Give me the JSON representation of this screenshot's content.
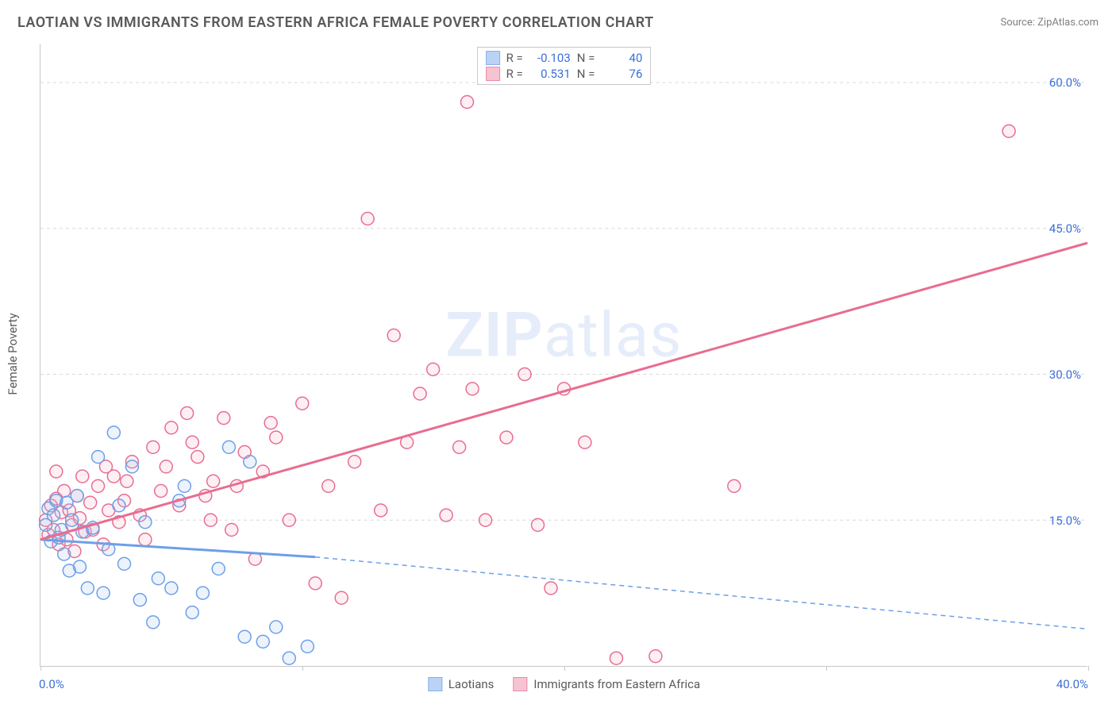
{
  "title": "LAOTIAN VS IMMIGRANTS FROM EASTERN AFRICA FEMALE POVERTY CORRELATION CHART",
  "source": "Source: ZipAtlas.com",
  "watermark_text_bold": "ZIP",
  "watermark_text_rest": "atlas",
  "y_axis_title": "Female Poverty",
  "chart": {
    "type": "scatter_with_regression",
    "background_color": "#ffffff",
    "grid_color": "#d8d8d8",
    "axis_color": "#c8c8c8",
    "tick_label_color": "#3b6fd8",
    "tick_fontsize": 15,
    "title_color": "#5a5a5a",
    "title_fontsize": 18,
    "xlim": [
      0.0,
      40.0
    ],
    "ylim": [
      0.0,
      64.0
    ],
    "x_ticks": [
      0.0,
      10.0,
      20.0,
      30.0,
      40.0
    ],
    "x_tick_labels": [
      "0.0%",
      "",
      "",
      "",
      "40.0%"
    ],
    "y_ticks": [
      15.0,
      30.0,
      45.0,
      60.0
    ],
    "y_tick_labels": [
      "15.0%",
      "30.0%",
      "45.0%",
      "60.0%"
    ],
    "marker_radius": 8,
    "marker_stroke_width": 1.5,
    "marker_fill_opacity": 0.22,
    "series": [
      {
        "name": "Laotians",
        "color": "#6d9fe8",
        "fill": "#a9c7f2",
        "R": "-0.103",
        "N": "40",
        "regression": {
          "x1": 0,
          "y1": 13.0,
          "x2": 10.5,
          "y2": 11.2,
          "solid_until_x": 10.5,
          "dash_to_x": 40.0,
          "dash_to_y": 3.8
        },
        "points": [
          [
            0.2,
            14.5
          ],
          [
            0.3,
            16.2
          ],
          [
            0.4,
            12.8
          ],
          [
            0.5,
            15.5
          ],
          [
            0.6,
            17.0
          ],
          [
            0.7,
            13.2
          ],
          [
            0.8,
            14.0
          ],
          [
            0.9,
            11.5
          ],
          [
            1.0,
            16.8
          ],
          [
            1.1,
            9.8
          ],
          [
            1.2,
            15.0
          ],
          [
            1.4,
            17.5
          ],
          [
            1.5,
            10.2
          ],
          [
            1.6,
            13.8
          ],
          [
            1.8,
            8.0
          ],
          [
            2.0,
            14.2
          ],
          [
            2.2,
            21.5
          ],
          [
            2.4,
            7.5
          ],
          [
            2.6,
            12.0
          ],
          [
            2.8,
            24.0
          ],
          [
            3.0,
            16.5
          ],
          [
            3.2,
            10.5
          ],
          [
            3.5,
            20.5
          ],
          [
            3.8,
            6.8
          ],
          [
            4.0,
            14.8
          ],
          [
            4.3,
            4.5
          ],
          [
            4.5,
            9.0
          ],
          [
            5.0,
            8.0
          ],
          [
            5.3,
            17.0
          ],
          [
            5.8,
            5.5
          ],
          [
            6.2,
            7.5
          ],
          [
            6.8,
            10.0
          ],
          [
            7.2,
            22.5
          ],
          [
            7.8,
            3.0
          ],
          [
            8.0,
            21.0
          ],
          [
            8.5,
            2.5
          ],
          [
            9.0,
            4.0
          ],
          [
            9.5,
            0.8
          ],
          [
            10.2,
            2.0
          ],
          [
            5.5,
            18.5
          ]
        ]
      },
      {
        "name": "Immigrants from Eastern Africa",
        "color": "#e86d90",
        "fill": "#f5b5c8",
        "R": "0.531",
        "N": "76",
        "regression": {
          "x1": 0,
          "y1": 13.0,
          "x2": 40.0,
          "y2": 43.5,
          "solid_until_x": 40.0
        },
        "points": [
          [
            0.2,
            15.0
          ],
          [
            0.3,
            13.5
          ],
          [
            0.4,
            16.5
          ],
          [
            0.5,
            14.0
          ],
          [
            0.6,
            17.2
          ],
          [
            0.7,
            12.5
          ],
          [
            0.8,
            15.8
          ],
          [
            0.9,
            18.0
          ],
          [
            1.0,
            13.0
          ],
          [
            1.1,
            16.0
          ],
          [
            1.2,
            14.5
          ],
          [
            1.3,
            11.8
          ],
          [
            1.4,
            17.5
          ],
          [
            1.5,
            15.2
          ],
          [
            1.7,
            13.8
          ],
          [
            1.9,
            16.8
          ],
          [
            2.0,
            14.0
          ],
          [
            2.2,
            18.5
          ],
          [
            2.4,
            12.5
          ],
          [
            2.6,
            16.0
          ],
          [
            2.8,
            19.5
          ],
          [
            3.0,
            14.8
          ],
          [
            3.2,
            17.0
          ],
          [
            3.5,
            21.0
          ],
          [
            3.8,
            15.5
          ],
          [
            4.0,
            13.0
          ],
          [
            4.3,
            22.5
          ],
          [
            4.6,
            18.0
          ],
          [
            5.0,
            24.5
          ],
          [
            5.3,
            16.5
          ],
          [
            5.6,
            26.0
          ],
          [
            6.0,
            21.5
          ],
          [
            6.3,
            17.5
          ],
          [
            6.6,
            19.0
          ],
          [
            7.0,
            25.5
          ],
          [
            7.3,
            14.0
          ],
          [
            7.8,
            22.0
          ],
          [
            8.2,
            11.0
          ],
          [
            8.5,
            20.0
          ],
          [
            9.0,
            23.5
          ],
          [
            9.5,
            15.0
          ],
          [
            10.0,
            27.0
          ],
          [
            10.5,
            8.5
          ],
          [
            11.0,
            18.5
          ],
          [
            11.5,
            7.0
          ],
          [
            12.0,
            21.0
          ],
          [
            12.5,
            46.0
          ],
          [
            13.0,
            16.0
          ],
          [
            13.5,
            34.0
          ],
          [
            14.0,
            23.0
          ],
          [
            14.5,
            28.0
          ],
          [
            15.0,
            30.5
          ],
          [
            15.5,
            15.5
          ],
          [
            16.0,
            22.5
          ],
          [
            16.5,
            28.5
          ],
          [
            17.0,
            15.0
          ],
          [
            17.8,
            23.5
          ],
          [
            18.5,
            30.0
          ],
          [
            19.0,
            14.5
          ],
          [
            19.5,
            8.0
          ],
          [
            20.0,
            28.5
          ],
          [
            20.8,
            23.0
          ],
          [
            22.0,
            0.8
          ],
          [
            23.5,
            1.0
          ],
          [
            26.5,
            18.5
          ],
          [
            37.0,
            55.0
          ],
          [
            16.3,
            58.0
          ],
          [
            4.8,
            20.5
          ],
          [
            5.8,
            23.0
          ],
          [
            6.5,
            15.0
          ],
          [
            7.5,
            18.5
          ],
          [
            8.8,
            25.0
          ],
          [
            3.3,
            19.0
          ],
          [
            2.5,
            20.5
          ],
          [
            1.6,
            19.5
          ],
          [
            0.6,
            20.0
          ]
        ]
      }
    ],
    "stats_box": {
      "border_color": "#c8c8c8",
      "label_color": "#5a5a5a",
      "value_color": "#3b6fd8",
      "fontsize": 15,
      "r_label": "R =",
      "n_label": "N ="
    },
    "bottom_legend_fontsize": 15,
    "bottom_legend_color": "#5a5a5a"
  }
}
